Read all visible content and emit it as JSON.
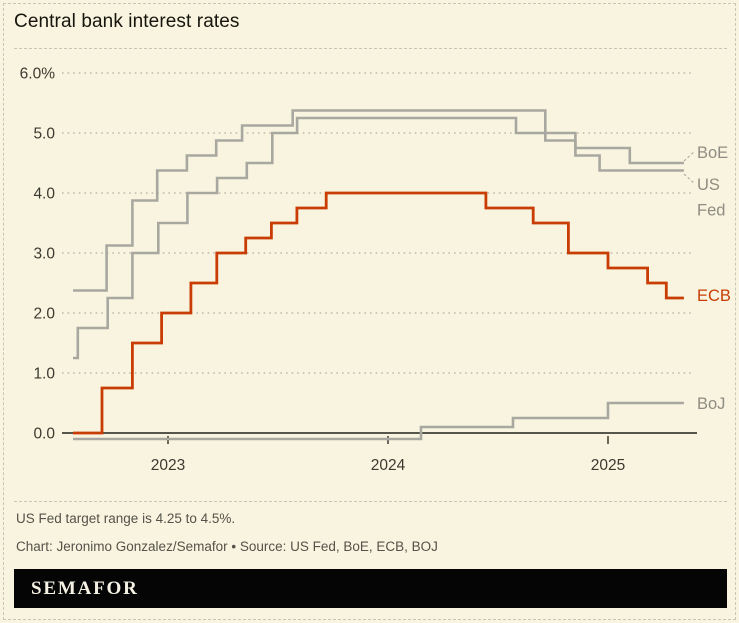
{
  "title": "Central bank interest rates",
  "colors": {
    "background": "#f8f4df",
    "grid": "#bcbaab",
    "axis_line": "#3f3f37",
    "axis_text": "#3b3a30",
    "gray_line": "#a9a8a0",
    "orange_line": "#c93d04",
    "series_label_gray": "#8e8d83",
    "footer_text": "#54524a",
    "logo_bar": "#050505",
    "logo_text": "#f5f2e4",
    "dashed_border": "#c9c6b4"
  },
  "chart_data": {
    "type": "line",
    "line_style": "step-after",
    "title": "Central bank interest rates",
    "xlabel": "",
    "ylabel": "",
    "grid": "horizontal-dotted",
    "legend_position": "right-edge-direct-labels",
    "x_range": [
      2022.568,
      2025.345
    ],
    "y_range": [
      -0.15,
      6.3
    ],
    "x_ticks": [
      2023,
      2024,
      2025
    ],
    "x_tick_labels": [
      "2023",
      "2024",
      "2025"
    ],
    "y_ticks": [
      0,
      1,
      2,
      3,
      4,
      5,
      6
    ],
    "y_tick_labels": [
      "0.0",
      "1.0",
      "2.0",
      "3.0",
      "4.0",
      "5.0",
      "6.0%"
    ],
    "series": [
      {
        "name": "BoE",
        "color": "#a9a8a0",
        "width": 2.6,
        "label_lines": [
          "BoE"
        ],
        "label_color": "#8e8d83",
        "label_baseline": 158,
        "leader": [
          684,
          161,
          695,
          151
        ],
        "points": [
          [
            2022.568,
            1.25
          ],
          [
            2022.59,
            1.75
          ],
          [
            2022.726,
            2.25
          ],
          [
            2022.838,
            3.0
          ],
          [
            2022.956,
            3.5
          ],
          [
            2023.088,
            4.0
          ],
          [
            2023.223,
            4.25
          ],
          [
            2023.358,
            4.5
          ],
          [
            2023.474,
            5.0
          ],
          [
            2023.587,
            5.25
          ],
          [
            2024.582,
            5.0
          ],
          [
            2024.852,
            4.75
          ],
          [
            2025.099,
            4.5
          ]
        ]
      },
      {
        "name": "US Fed",
        "color": "#a9a8a0",
        "width": 2.6,
        "label_lines": [
          "US",
          "Fed"
        ],
        "label_color": "#8e8d83",
        "label_baseline": 190,
        "leader": [
          684,
          174,
          695,
          184
        ],
        "points": [
          [
            2022.568,
            2.375
          ],
          [
            2022.721,
            3.125
          ],
          [
            2022.838,
            3.875
          ],
          [
            2022.951,
            4.375
          ],
          [
            2023.086,
            4.625
          ],
          [
            2023.219,
            4.875
          ],
          [
            2023.337,
            5.125
          ],
          [
            2023.567,
            5.375
          ],
          [
            2024.715,
            4.875
          ],
          [
            2024.852,
            4.625
          ],
          [
            2024.962,
            4.375
          ]
        ]
      },
      {
        "name": "BoJ",
        "color": "#a9a8a0",
        "width": 2.6,
        "label_lines": [
          "BoJ"
        ],
        "label_color": "#8e8d83",
        "label_baseline": 409,
        "leader": null,
        "points": [
          [
            2022.568,
            -0.1
          ],
          [
            2024.15,
            0.1
          ],
          [
            2024.568,
            0.25
          ],
          [
            2025.0,
            0.5
          ]
        ]
      },
      {
        "name": "ECB",
        "color": "#c93d04",
        "width": 2.8,
        "label_lines": [
          "ECB"
        ],
        "label_color": "#c93d04",
        "label_baseline": 301,
        "leader": null,
        "points": [
          [
            2022.568,
            0.0
          ],
          [
            2022.7,
            0.75
          ],
          [
            2022.838,
            1.5
          ],
          [
            2022.971,
            2.0
          ],
          [
            2023.104,
            2.5
          ],
          [
            2023.222,
            3.0
          ],
          [
            2023.353,
            3.25
          ],
          [
            2023.47,
            3.5
          ],
          [
            2023.586,
            3.75
          ],
          [
            2023.719,
            4.0
          ],
          [
            2024.445,
            3.75
          ],
          [
            2024.66,
            3.5
          ],
          [
            2024.82,
            3.0
          ],
          [
            2025.0,
            2.75
          ],
          [
            2025.18,
            2.5
          ],
          [
            2025.265,
            2.25
          ]
        ]
      }
    ]
  },
  "footer": {
    "note": "US Fed target range is 4.25 to 4.5%.",
    "credit": "Chart: Jeronimo Gonzalez/Semafor • Source: US Fed, BoE, ECB, BOJ",
    "logo": "SEMAFOR"
  }
}
